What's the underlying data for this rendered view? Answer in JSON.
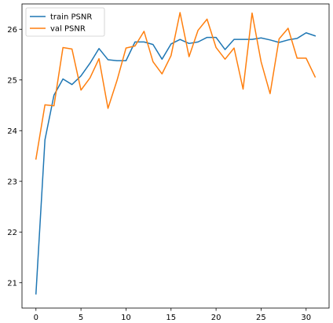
{
  "chart_data": {
    "type": "line",
    "title": "",
    "xlabel": "",
    "ylabel": "",
    "xlim": [
      -1.55,
      32.55
    ],
    "ylim": [
      20.5,
      26.5
    ],
    "xticks": [
      0,
      5,
      10,
      15,
      20,
      25,
      30
    ],
    "yticks": [
      21,
      22,
      23,
      24,
      25,
      26
    ],
    "grid": false,
    "legend_position": "top-left",
    "series": [
      {
        "name": "train PSNR",
        "color": "#1f77b4",
        "x": [
          0,
          1,
          2,
          3,
          4,
          5,
          6,
          7,
          8,
          9,
          10,
          11,
          12,
          13,
          14,
          15,
          16,
          17,
          18,
          19,
          20,
          21,
          22,
          23,
          24,
          25,
          26,
          27,
          28,
          29,
          30,
          31
        ],
        "values": [
          20.78,
          23.82,
          24.7,
          25.02,
          24.91,
          25.08,
          25.33,
          25.62,
          25.4,
          25.38,
          25.38,
          25.75,
          25.75,
          25.7,
          25.41,
          25.71,
          25.8,
          25.72,
          25.75,
          25.84,
          25.84,
          25.6,
          25.8,
          25.8,
          25.8,
          25.83,
          25.79,
          25.74,
          25.79,
          25.82,
          25.93,
          25.87
        ]
      },
      {
        "name": "val PSNR",
        "color": "#ff7f0e",
        "x": [
          0,
          1,
          2,
          3,
          4,
          5,
          6,
          7,
          8,
          9,
          10,
          11,
          12,
          13,
          14,
          15,
          16,
          17,
          18,
          19,
          20,
          21,
          22,
          23,
          24,
          25,
          26,
          27,
          28,
          29,
          30,
          31
        ],
        "values": [
          23.44,
          24.51,
          24.49,
          25.64,
          25.61,
          24.8,
          25.04,
          25.42,
          24.44,
          24.99,
          25.63,
          25.67,
          25.96,
          25.36,
          25.12,
          25.48,
          26.33,
          25.46,
          25.98,
          26.2,
          25.64,
          25.41,
          25.63,
          24.82,
          26.32,
          25.36,
          24.73,
          25.81,
          26.02,
          25.43,
          25.43,
          25.06
        ]
      }
    ]
  }
}
